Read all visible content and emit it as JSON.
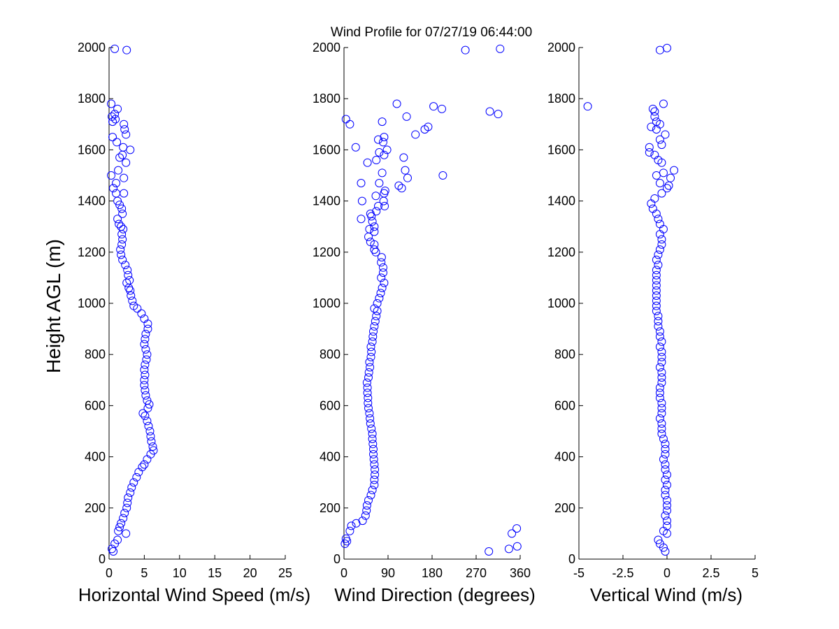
{
  "figure": {
    "title": "Wind Profile for  07/27/19 06:44:00",
    "ylabel": "Height AGL (m)"
  },
  "chart_data": [
    {
      "type": "scatter",
      "xlabel": "Horizontal Wind Speed (m/s)",
      "ylabel": "Height AGL (m)",
      "xlim": [
        0,
        25
      ],
      "ylim": [
        0,
        2000
      ],
      "xticks": [
        0,
        5,
        10,
        15,
        20,
        25
      ],
      "xtick_labels": [
        "0",
        "5",
        "10",
        "15",
        "20",
        "25"
      ],
      "yticks": [
        0,
        200,
        400,
        600,
        800,
        1000,
        1200,
        1400,
        1600,
        1800,
        2000
      ],
      "ytick_labels": [
        "0",
        "200",
        "400",
        "600",
        "800",
        "1000",
        "1200",
        "1400",
        "1600",
        "1800",
        "2000"
      ],
      "marker": "circle-open",
      "color": "#0000ff",
      "grid": false,
      "points": [
        [
          0.6,
          30
        ],
        [
          0.4,
          40
        ],
        [
          0.8,
          60
        ],
        [
          1.2,
          75
        ],
        [
          2.4,
          100
        ],
        [
          1.3,
          110
        ],
        [
          1.5,
          125
        ],
        [
          1.7,
          140
        ],
        [
          2.0,
          160
        ],
        [
          2.2,
          180
        ],
        [
          2.5,
          200
        ],
        [
          2.6,
          220
        ],
        [
          2.7,
          240
        ],
        [
          3.0,
          260
        ],
        [
          3.2,
          280
        ],
        [
          3.5,
          300
        ],
        [
          3.9,
          320
        ],
        [
          4.2,
          340
        ],
        [
          4.7,
          360
        ],
        [
          5.0,
          370
        ],
        [
          5.4,
          390
        ],
        [
          5.9,
          410
        ],
        [
          6.3,
          425
        ],
        [
          6.2,
          440
        ],
        [
          6.0,
          460
        ],
        [
          5.9,
          480
        ],
        [
          5.8,
          500
        ],
        [
          5.6,
          520
        ],
        [
          5.4,
          540
        ],
        [
          5.1,
          560
        ],
        [
          4.8,
          570
        ],
        [
          5.5,
          590
        ],
        [
          5.7,
          605
        ],
        [
          5.4,
          620
        ],
        [
          5.2,
          640
        ],
        [
          5.1,
          660
        ],
        [
          5.0,
          680
        ],
        [
          5.0,
          700
        ],
        [
          5.1,
          720
        ],
        [
          5.0,
          740
        ],
        [
          5.1,
          760
        ],
        [
          5.3,
          780
        ],
        [
          5.4,
          800
        ],
        [
          5.2,
          820
        ],
        [
          5.0,
          840
        ],
        [
          5.1,
          860
        ],
        [
          5.2,
          880
        ],
        [
          5.5,
          900
        ],
        [
          5.5,
          920
        ],
        [
          5.0,
          940
        ],
        [
          4.6,
          960
        ],
        [
          4.0,
          980
        ],
        [
          3.5,
          990
        ],
        [
          3.3,
          1010
        ],
        [
          3.1,
          1030
        ],
        [
          3.0,
          1050
        ],
        [
          2.8,
          1060
        ],
        [
          2.5,
          1080
        ],
        [
          2.9,
          1090
        ],
        [
          2.7,
          1110
        ],
        [
          2.6,
          1130
        ],
        [
          2.3,
          1150
        ],
        [
          1.9,
          1170
        ],
        [
          1.7,
          1190
        ],
        [
          1.6,
          1210
        ],
        [
          1.8,
          1230
        ],
        [
          1.9,
          1250
        ],
        [
          1.8,
          1270
        ],
        [
          2.0,
          1290
        ],
        [
          1.7,
          1300
        ],
        [
          1.4,
          1310
        ],
        [
          1.2,
          1330
        ],
        [
          1.9,
          1350
        ],
        [
          1.8,
          1370
        ],
        [
          1.5,
          1385
        ],
        [
          1.2,
          1400
        ],
        [
          1.0,
          1430
        ],
        [
          2.1,
          1430
        ],
        [
          0.6,
          1450
        ],
        [
          1.0,
          1470
        ],
        [
          2.1,
          1490
        ],
        [
          0.3,
          1500
        ],
        [
          1.3,
          1520
        ],
        [
          2.4,
          1550
        ],
        [
          1.5,
          1570
        ],
        [
          1.9,
          1580
        ],
        [
          3.0,
          1600
        ],
        [
          2.0,
          1610
        ],
        [
          1.1,
          1630
        ],
        [
          0.5,
          1650
        ],
        [
          2.4,
          1660
        ],
        [
          2.2,
          1680
        ],
        [
          2.1,
          1700
        ],
        [
          0.5,
          1710
        ],
        [
          0.9,
          1720
        ],
        [
          0.4,
          1730
        ],
        [
          0.8,
          1740
        ],
        [
          1.2,
          1760
        ],
        [
          0.3,
          1780
        ],
        [
          0.8,
          1995
        ],
        [
          2.5,
          1990
        ]
      ]
    },
    {
      "type": "scatter",
      "xlabel": "Wind Direction (degrees)",
      "xlim": [
        0,
        360
      ],
      "ylim": [
        0,
        2000
      ],
      "xticks": [
        0,
        90,
        180,
        270,
        360
      ],
      "xtick_labels": [
        "0",
        "90",
        "180",
        "270",
        "360"
      ],
      "yticks": [
        0,
        200,
        400,
        600,
        800,
        1000,
        1200,
        1400,
        1600,
        1800,
        2000
      ],
      "ytick_labels": [
        "0",
        "200",
        "400",
        "600",
        "800",
        "1000",
        "1200",
        "1400",
        "1600",
        "1800",
        "2000"
      ],
      "marker": "circle-open",
      "color": "#0000ff",
      "grid": false,
      "points": [
        [
          296,
          30
        ],
        [
          337,
          40
        ],
        [
          354,
          50
        ],
        [
          2,
          60
        ],
        [
          6,
          70
        ],
        [
          4,
          80
        ],
        [
          343,
          100
        ],
        [
          12,
          110
        ],
        [
          353,
          120
        ],
        [
          15,
          130
        ],
        [
          25,
          140
        ],
        [
          38,
          150
        ],
        [
          44,
          170
        ],
        [
          46,
          190
        ],
        [
          47,
          210
        ],
        [
          50,
          230
        ],
        [
          55,
          250
        ],
        [
          58,
          270
        ],
        [
          62,
          290
        ],
        [
          62,
          310
        ],
        [
          63,
          330
        ],
        [
          63,
          350
        ],
        [
          62,
          370
        ],
        [
          61,
          390
        ],
        [
          60,
          410
        ],
        [
          60,
          430
        ],
        [
          59,
          450
        ],
        [
          58,
          470
        ],
        [
          58,
          490
        ],
        [
          56,
          510
        ],
        [
          54,
          530
        ],
        [
          53,
          550
        ],
        [
          52,
          570
        ],
        [
          50,
          590
        ],
        [
          49,
          610
        ],
        [
          49,
          630
        ],
        [
          48,
          650
        ],
        [
          48,
          670
        ],
        [
          47,
          690
        ],
        [
          50,
          710
        ],
        [
          51,
          730
        ],
        [
          53,
          750
        ],
        [
          52,
          770
        ],
        [
          55,
          790
        ],
        [
          56,
          810
        ],
        [
          55,
          830
        ],
        [
          58,
          850
        ],
        [
          59,
          870
        ],
        [
          60,
          890
        ],
        [
          62,
          910
        ],
        [
          64,
          930
        ],
        [
          66,
          950
        ],
        [
          68,
          970
        ],
        [
          62,
          980
        ],
        [
          68,
          1000
        ],
        [
          72,
          1020
        ],
        [
          75,
          1040
        ],
        [
          78,
          1060
        ],
        [
          82,
          1080
        ],
        [
          76,
          1100
        ],
        [
          80,
          1120
        ],
        [
          80,
          1140
        ],
        [
          76,
          1160
        ],
        [
          77,
          1180
        ],
        [
          65,
          1200
        ],
        [
          62,
          1210
        ],
        [
          62,
          1230
        ],
        [
          54,
          1240
        ],
        [
          50,
          1260
        ],
        [
          62,
          1280
        ],
        [
          52,
          1290
        ],
        [
          62,
          1300
        ],
        [
          58,
          1320
        ],
        [
          35,
          1330
        ],
        [
          56,
          1340
        ],
        [
          66,
          1360
        ],
        [
          54,
          1350
        ],
        [
          70,
          1380
        ],
        [
          83,
          1380
        ],
        [
          81,
          1400
        ],
        [
          37,
          1400
        ],
        [
          65,
          1420
        ],
        [
          82,
          1430
        ],
        [
          84,
          1440
        ],
        [
          112,
          1460
        ],
        [
          118,
          1450
        ],
        [
          72,
          1470
        ],
        [
          35,
          1470
        ],
        [
          130,
          1490
        ],
        [
          202,
          1500
        ],
        [
          78,
          1510
        ],
        [
          125,
          1520
        ],
        [
          48,
          1550
        ],
        [
          66,
          1560
        ],
        [
          122,
          1570
        ],
        [
          82,
          1580
        ],
        [
          88,
          1600
        ],
        [
          72,
          1590
        ],
        [
          24,
          1610
        ],
        [
          80,
          1630
        ],
        [
          70,
          1640
        ],
        [
          82,
          1650
        ],
        [
          146,
          1660
        ],
        [
          165,
          1680
        ],
        [
          172,
          1690
        ],
        [
          78,
          1710
        ],
        [
          4,
          1720
        ],
        [
          12,
          1700
        ],
        [
          128,
          1730
        ],
        [
          315,
          1740
        ],
        [
          298,
          1750
        ],
        [
          200,
          1760
        ],
        [
          183,
          1770
        ],
        [
          108,
          1780
        ],
        [
          248,
          1990
        ],
        [
          319,
          1995
        ]
      ]
    },
    {
      "type": "scatter",
      "xlabel": "Vertical Wind (m/s)",
      "xlim": [
        -5,
        5
      ],
      "ylim": [
        0,
        2000
      ],
      "xticks": [
        -5,
        -2.5,
        0,
        2.5,
        5
      ],
      "xtick_labels": [
        "-5",
        "-2.5",
        "0",
        "2.5",
        "5"
      ],
      "yticks": [
        0,
        200,
        400,
        600,
        800,
        1000,
        1200,
        1400,
        1600,
        1800,
        2000
      ],
      "ytick_labels": [
        "0",
        "200",
        "400",
        "600",
        "800",
        "1000",
        "1200",
        "1400",
        "1600",
        "1800",
        "2000"
      ],
      "marker": "circle-open",
      "color": "#0000ff",
      "grid": false,
      "points": [
        [
          -0.1,
          30
        ],
        [
          -0.2,
          45
        ],
        [
          -0.4,
          60
        ],
        [
          -0.5,
          75
        ],
        [
          0.0,
          100
        ],
        [
          -0.2,
          110
        ],
        [
          0.0,
          130
        ],
        [
          0.0,
          150
        ],
        [
          -0.1,
          170
        ],
        [
          0.0,
          190
        ],
        [
          0.0,
          210
        ],
        [
          0.0,
          230
        ],
        [
          -0.1,
          250
        ],
        [
          -0.1,
          270
        ],
        [
          0.0,
          290
        ],
        [
          -0.1,
          310
        ],
        [
          0.0,
          330
        ],
        [
          -0.1,
          350
        ],
        [
          -0.1,
          370
        ],
        [
          -0.2,
          390
        ],
        [
          -0.1,
          410
        ],
        [
          -0.1,
          430
        ],
        [
          -0.1,
          450
        ],
        [
          -0.2,
          470
        ],
        [
          -0.3,
          490
        ],
        [
          -0.3,
          510
        ],
        [
          -0.3,
          530
        ],
        [
          -0.4,
          550
        ],
        [
          -0.3,
          570
        ],
        [
          -0.3,
          590
        ],
        [
          -0.3,
          610
        ],
        [
          -0.4,
          630
        ],
        [
          -0.4,
          650
        ],
        [
          -0.4,
          670
        ],
        [
          -0.3,
          690
        ],
        [
          -0.3,
          710
        ],
        [
          -0.3,
          730
        ],
        [
          -0.4,
          750
        ],
        [
          -0.3,
          770
        ],
        [
          -0.3,
          790
        ],
        [
          -0.3,
          810
        ],
        [
          -0.4,
          830
        ],
        [
          -0.3,
          850
        ],
        [
          -0.4,
          870
        ],
        [
          -0.4,
          890
        ],
        [
          -0.5,
          910
        ],
        [
          -0.5,
          930
        ],
        [
          -0.5,
          950
        ],
        [
          -0.6,
          970
        ],
        [
          -0.6,
          990
        ],
        [
          -0.6,
          1010
        ],
        [
          -0.6,
          1030
        ],
        [
          -0.6,
          1050
        ],
        [
          -0.6,
          1070
        ],
        [
          -0.6,
          1090
        ],
        [
          -0.6,
          1110
        ],
        [
          -0.6,
          1130
        ],
        [
          -0.5,
          1150
        ],
        [
          -0.6,
          1170
        ],
        [
          -0.5,
          1190
        ],
        [
          -0.4,
          1210
        ],
        [
          -0.3,
          1230
        ],
        [
          -0.3,
          1250
        ],
        [
          -0.4,
          1270
        ],
        [
          -0.2,
          1290
        ],
        [
          -0.4,
          1310
        ],
        [
          -0.5,
          1330
        ],
        [
          -0.6,
          1350
        ],
        [
          -0.8,
          1370
        ],
        [
          -0.9,
          1390
        ],
        [
          -0.7,
          1410
        ],
        [
          -0.3,
          1430
        ],
        [
          0.0,
          1450
        ],
        [
          0.1,
          1460
        ],
        [
          -0.4,
          1470
        ],
        [
          0.2,
          1490
        ],
        [
          -0.6,
          1500
        ],
        [
          0.4,
          1520
        ],
        [
          -0.2,
          1510
        ],
        [
          -0.3,
          1550
        ],
        [
          -0.5,
          1560
        ],
        [
          -0.7,
          1580
        ],
        [
          -1.0,
          1590
        ],
        [
          -1.0,
          1610
        ],
        [
          -0.3,
          1620
        ],
        [
          -0.4,
          1640
        ],
        [
          -0.1,
          1660
        ],
        [
          -0.6,
          1680
        ],
        [
          -0.9,
          1690
        ],
        [
          -0.4,
          1700
        ],
        [
          -0.6,
          1710
        ],
        [
          -0.7,
          1730
        ],
        [
          -0.7,
          1750
        ],
        [
          -0.8,
          1760
        ],
        [
          -4.5,
          1770
        ],
        [
          -0.2,
          1780
        ],
        [
          -0.4,
          1990
        ],
        [
          0.0,
          1998
        ]
      ]
    }
  ]
}
